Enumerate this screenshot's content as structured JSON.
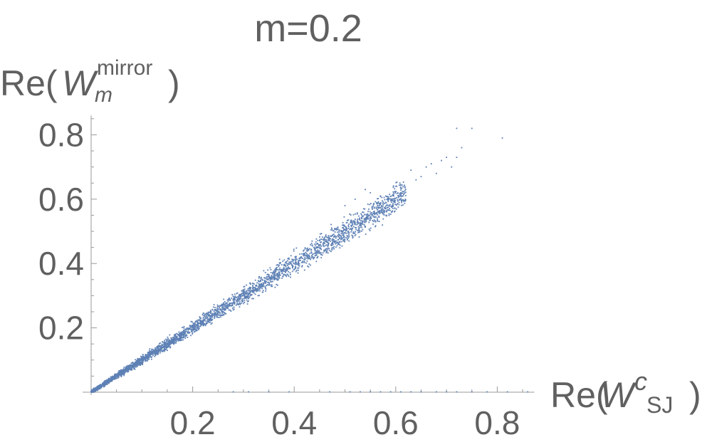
{
  "chart_data": {
    "type": "scatter",
    "title": "m=0.2",
    "ylabel": {
      "prefix": "Re(",
      "main": "W",
      "superscript": "mirror",
      "subscript": "m",
      "suffix": ")"
    },
    "xlabel": {
      "prefix": "Re(",
      "main": "W",
      "superscript": "c",
      "subscript": "SJ",
      "suffix": ")"
    },
    "xlim": [
      0,
      0.88
    ],
    "ylim": [
      0,
      0.86
    ],
    "xticks": [
      "0.2",
      "0.4",
      "0.6",
      "0.8"
    ],
    "yticks": [
      "0.2",
      "0.4",
      "0.6",
      "0.8"
    ],
    "grid": false,
    "point_color": "#5E81B5",
    "generated_band": {
      "n_points": 3200,
      "x_range": [
        0.0,
        0.62
      ],
      "slope": 1.0,
      "spread_fraction": 0.045
    },
    "outliers": [
      [
        0.5,
        0.58
      ],
      [
        0.52,
        0.6
      ],
      [
        0.54,
        0.63
      ],
      [
        0.55,
        0.62
      ],
      [
        0.57,
        0.61
      ],
      [
        0.58,
        0.59
      ],
      [
        0.6,
        0.64
      ],
      [
        0.61,
        0.62
      ],
      [
        0.63,
        0.69
      ],
      [
        0.64,
        0.66
      ],
      [
        0.65,
        0.67
      ],
      [
        0.66,
        0.7
      ],
      [
        0.67,
        0.71
      ],
      [
        0.68,
        0.68
      ],
      [
        0.69,
        0.72
      ],
      [
        0.7,
        0.73
      ],
      [
        0.71,
        0.7
      ],
      [
        0.72,
        0.73
      ],
      [
        0.72,
        0.82
      ],
      [
        0.73,
        0.76
      ],
      [
        0.75,
        0.82
      ],
      [
        0.81,
        0.79
      ]
    ],
    "xaxis_points": [
      0.28,
      0.31,
      0.35,
      0.39,
      0.47,
      0.51,
      0.53,
      0.55,
      0.57,
      0.59,
      0.61,
      0.63,
      0.65,
      0.68,
      0.7,
      0.72,
      0.75,
      0.78,
      0.82,
      0.86
    ]
  }
}
